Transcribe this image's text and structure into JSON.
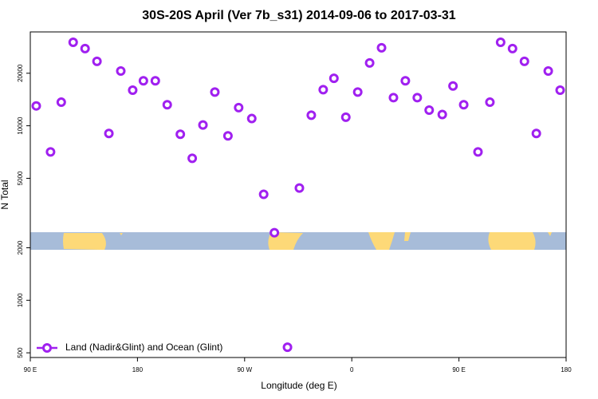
{
  "chart_data": {
    "type": "scatter",
    "title": "30S-20S April (Ver 7b_s31)   2014-09-06 to 2017-03-31",
    "x_label": "Longitude (deg E)",
    "y_label": "N Total",
    "log_y": true,
    "legend_position": "bottom-left",
    "xlim": [
      90,
      540
    ],
    "xticks": [
      {
        "value": 90,
        "label": "90 E"
      },
      180,
      {
        "value": 270,
        "label": "90 W"
      },
      {
        "value": 360,
        "label": "0"
      },
      {
        "value": 450,
        "label": "90 E"
      },
      {
        "value": 540,
        "label": "180"
      }
    ],
    "ylim": [
      470,
      34500
    ],
    "yticks": [
      500,
      1000,
      2000,
      5000,
      10000,
      20000
    ],
    "series": [
      {
        "name": "Land (Nadir&Glint) and Ocean (Glint)",
        "color": "#a020f0",
        "x": [
          95,
          107,
          116,
          126,
          136,
          146,
          156,
          166,
          176,
          185,
          195,
          205,
          216,
          226,
          235,
          245,
          256,
          265,
          276,
          286,
          295,
          306,
          316,
          326,
          336,
          345,
          355,
          365,
          375,
          385,
          395,
          405,
          415,
          425,
          436,
          445,
          454,
          466,
          476,
          485,
          495,
          505,
          515,
          525,
          535
        ],
        "values": [
          13000,
          7080,
          13650,
          30100,
          27700,
          23400,
          9040,
          20600,
          16000,
          18100,
          18100,
          13200,
          8940,
          6510,
          10100,
          15600,
          8750,
          12700,
          11000,
          4050,
          2440,
          538,
          4400,
          11500,
          16100,
          18700,
          11200,
          15600,
          22900,
          28000,
          14500,
          18100,
          14500,
          12300,
          11600,
          16900,
          13200,
          7080,
          13650,
          30100,
          27700,
          23400,
          9040,
          20600,
          16000
        ]
      }
    ]
  }
}
